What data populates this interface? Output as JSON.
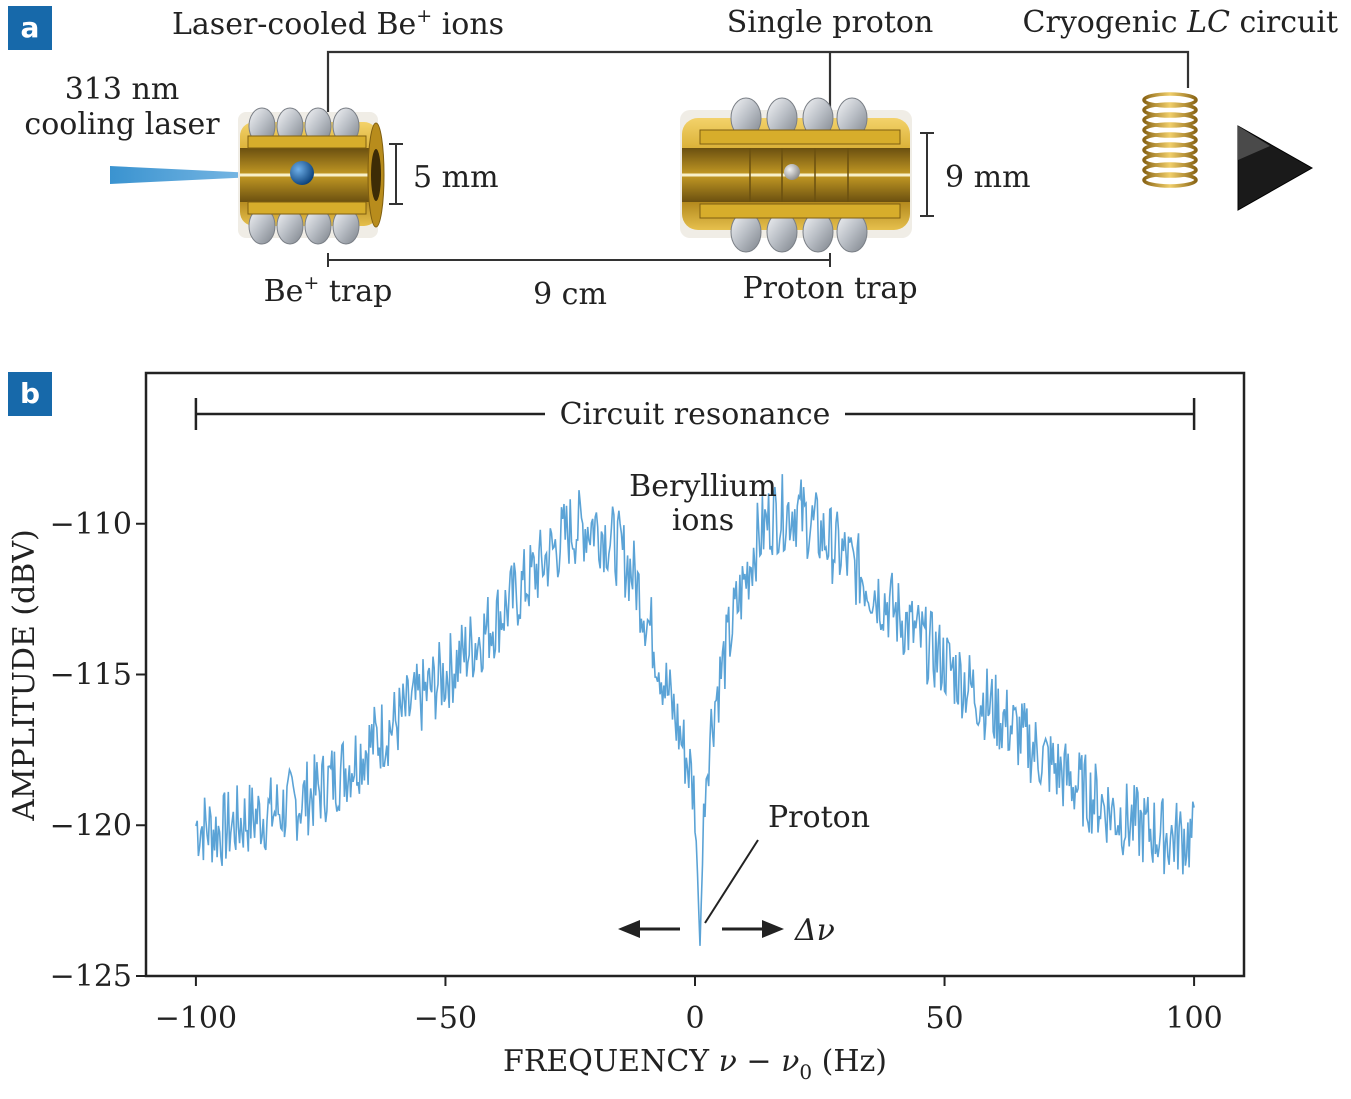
{
  "panel_a": {
    "badge": "a",
    "labels": {
      "be_ions": "Laser-cooled Be",
      "be_ions_sup": "+",
      "be_ions_tail": " ions",
      "single_proton": "Single proton",
      "lc_prefix": "Cryogenic ",
      "lc_italic": "LC",
      "lc_suffix": " circuit",
      "laser_line1": "313 nm",
      "laser_line2": "cooling laser",
      "be_dim": "5 mm",
      "proton_dim": "9 mm",
      "be_trap": "Be",
      "be_trap_sup": "+",
      "be_trap_tail": " trap",
      "separation": "9 cm",
      "proton_trap": "Proton trap"
    },
    "colors": {
      "gold": "#c9a227",
      "gold_dark": "#8a6a12",
      "silver": "#c8cdd3",
      "laser": "#3a93d0",
      "be_ion": "#0a4f8f",
      "proton": "#b8b8b8"
    }
  },
  "panel_b": {
    "badge": "b",
    "annotations": {
      "circuit_resonance": "Circuit resonance",
      "beryllium_line1": "Beryllium",
      "beryllium_line2": "ions",
      "proton": "Proton",
      "delta_nu": "Δν"
    },
    "trace_color": "#5ba3d6"
  },
  "chart_data": {
    "type": "line",
    "title": "",
    "xlabel": "FREQUENCY ν − ν₀ (Hz)",
    "xlabel_parts": {
      "main": "FREQUENCY ",
      "nu": "ν",
      "minus": " − ",
      "nu0": "ν",
      "sub": "0",
      "unit": " (Hz)"
    },
    "ylabel": "AMPLITUDE (dBV)",
    "xlim": [
      -110,
      110
    ],
    "ylim": [
      -125,
      -105
    ],
    "xticks": [
      -100,
      -50,
      0,
      50,
      100
    ],
    "xtick_labels": [
      "−100",
      "−50",
      "0",
      "50",
      "100"
    ],
    "yticks": [
      -110,
      -115,
      -120,
      -125
    ],
    "ytick_labels": [
      "−110",
      "−115",
      "−120",
      "−125"
    ],
    "series": [
      {
        "name": "Amplitude",
        "x": [
          -100,
          -95,
          -90,
          -85,
          -80,
          -75,
          -70,
          -65,
          -60,
          -55,
          -50,
          -45,
          -40,
          -35,
          -30,
          -25,
          -20,
          -15,
          -12,
          -10,
          -8,
          -6,
          -4,
          -2,
          -1,
          0,
          1,
          2,
          3,
          4,
          6,
          8,
          10,
          12,
          15,
          20,
          25,
          30,
          35,
          40,
          45,
          50,
          55,
          60,
          65,
          70,
          75,
          80,
          85,
          90,
          95,
          100
        ],
        "values": [
          -120.0,
          -120.2,
          -119.8,
          -119.6,
          -119.3,
          -118.8,
          -118.1,
          -117.3,
          -116.6,
          -115.8,
          -115.0,
          -114.1,
          -113.2,
          -112.2,
          -111.2,
          -110.2,
          -110.0,
          -110.9,
          -111.8,
          -112.9,
          -114.0,
          -115.3,
          -116.4,
          -117.6,
          -118.2,
          -119.2,
          -124.0,
          -118.6,
          -117.0,
          -115.9,
          -114.4,
          -113.0,
          -111.9,
          -110.7,
          -109.8,
          -109.5,
          -110.3,
          -111.1,
          -112.0,
          -112.9,
          -113.8,
          -114.6,
          -115.4,
          -116.2,
          -117.0,
          -117.8,
          -118.5,
          -119.1,
          -119.7,
          -120.1,
          -120.4,
          -120.4
        ]
      }
    ],
    "range_bar": [
      -100,
      100
    ],
    "range_label": "Circuit resonance"
  }
}
